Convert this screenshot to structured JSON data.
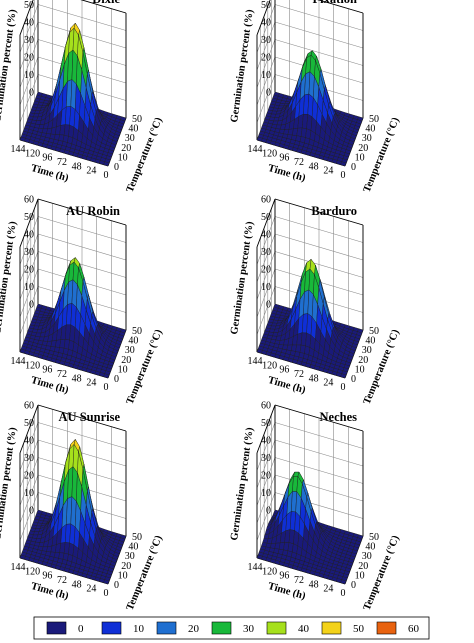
{
  "chart_data": {
    "type": "surface3d",
    "x_axis": {
      "label": "Time (h)",
      "ticks": [
        144,
        120,
        96,
        72,
        48,
        24,
        0
      ],
      "range": [
        0,
        144
      ]
    },
    "y_axis": {
      "label": "Temperature (°C)",
      "ticks": [
        0,
        10,
        20,
        30,
        40,
        50
      ],
      "range": [
        0,
        50
      ]
    },
    "z_axis": {
      "label": "Germination percent (%)",
      "ticks": [
        0,
        10,
        20,
        30,
        40,
        50,
        60
      ],
      "range": [
        0,
        60
      ]
    },
    "panels": [
      {
        "title": "Dixie",
        "peak": 58,
        "peak_time_h": 72,
        "peak_temp_c": 30
      },
      {
        "title": "Fixation",
        "peak": 42,
        "peak_time_h": 72,
        "peak_temp_c": 30
      },
      {
        "title": "AU Robin",
        "peak": 45,
        "peak_time_h": 72,
        "peak_temp_c": 30
      },
      {
        "title": "Barduro",
        "peak": 45,
        "peak_time_h": 72,
        "peak_temp_c": 28
      },
      {
        "title": "AU Sunrise",
        "peak": 59,
        "peak_time_h": 72,
        "peak_temp_c": 30
      },
      {
        "title": "Neches",
        "peak": 38,
        "peak_time_h": 96,
        "peak_temp_c": 30
      }
    ],
    "legend": {
      "position": "bottom",
      "values": [
        0,
        10,
        20,
        30,
        40,
        50,
        60
      ],
      "colors": [
        "#1a1a7a",
        "#0f2fd6",
        "#1f6fd0",
        "#18b83a",
        "#a6e01c",
        "#f3d21a",
        "#e8620f"
      ]
    }
  }
}
